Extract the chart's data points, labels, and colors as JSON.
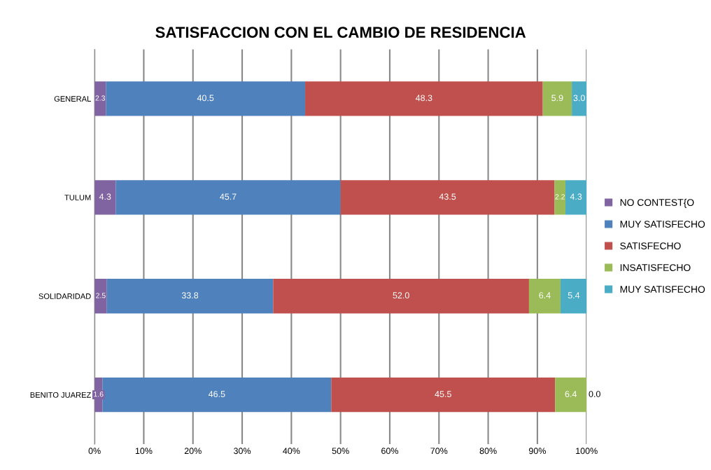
{
  "chart_data": {
    "type": "bar",
    "orientation": "horizontal",
    "stacked": true,
    "title": "SATISFACCION CON EL CAMBIO DE RESIDENCIA",
    "categories": [
      "GENERAL",
      "TULUM",
      "SOLIDARIDAD",
      "BENITO JUAREZ"
    ],
    "series": [
      {
        "name": "NO CONTEST{O",
        "color": "#8064a2",
        "values": [
          2.3,
          4.3,
          2.5,
          1.6
        ],
        "value_labels": [
          "2.3",
          "4.3",
          "2.5",
          "1.6"
        ]
      },
      {
        "name": "MUY SATISFECHO",
        "color": "#4f81bd",
        "values": [
          40.5,
          45.7,
          33.8,
          46.5
        ],
        "value_labels": [
          "40.5",
          "45.7",
          "33.8",
          "46.5"
        ]
      },
      {
        "name": "SATISFECHO",
        "color": "#c0504d",
        "values": [
          48.3,
          43.5,
          52.0,
          45.5
        ],
        "value_labels": [
          "48.3",
          "43.5",
          "52.0",
          "45.5"
        ]
      },
      {
        "name": "INSATISFECHO",
        "color": "#9bbb59",
        "values": [
          5.9,
          2.2,
          6.4,
          6.4
        ],
        "value_labels": [
          "5.9",
          "2.2",
          "6.4",
          "6.4"
        ]
      },
      {
        "name": "MUY SATISFECHO",
        "color": "#4bacc6",
        "values": [
          3.0,
          4.3,
          5.4,
          0.0
        ],
        "value_labels": [
          "3.0",
          "4.3",
          "5.4",
          "0.0"
        ]
      }
    ],
    "xlim": [
      0,
      100
    ],
    "xticks": [
      {
        "value": 0,
        "label": "0%"
      },
      {
        "value": 10,
        "label": "10%"
      },
      {
        "value": 20,
        "label": "20%"
      },
      {
        "value": 30,
        "label": "30%"
      },
      {
        "value": 40,
        "label": "40%"
      },
      {
        "value": 50,
        "label": "50%"
      },
      {
        "value": 60,
        "label": "60%"
      },
      {
        "value": 70,
        "label": "70%"
      },
      {
        "value": 80,
        "label": "80%"
      },
      {
        "value": 90,
        "label": "90%"
      },
      {
        "value": 100,
        "label": "100%"
      }
    ],
    "grid": "x",
    "legend": "right"
  }
}
